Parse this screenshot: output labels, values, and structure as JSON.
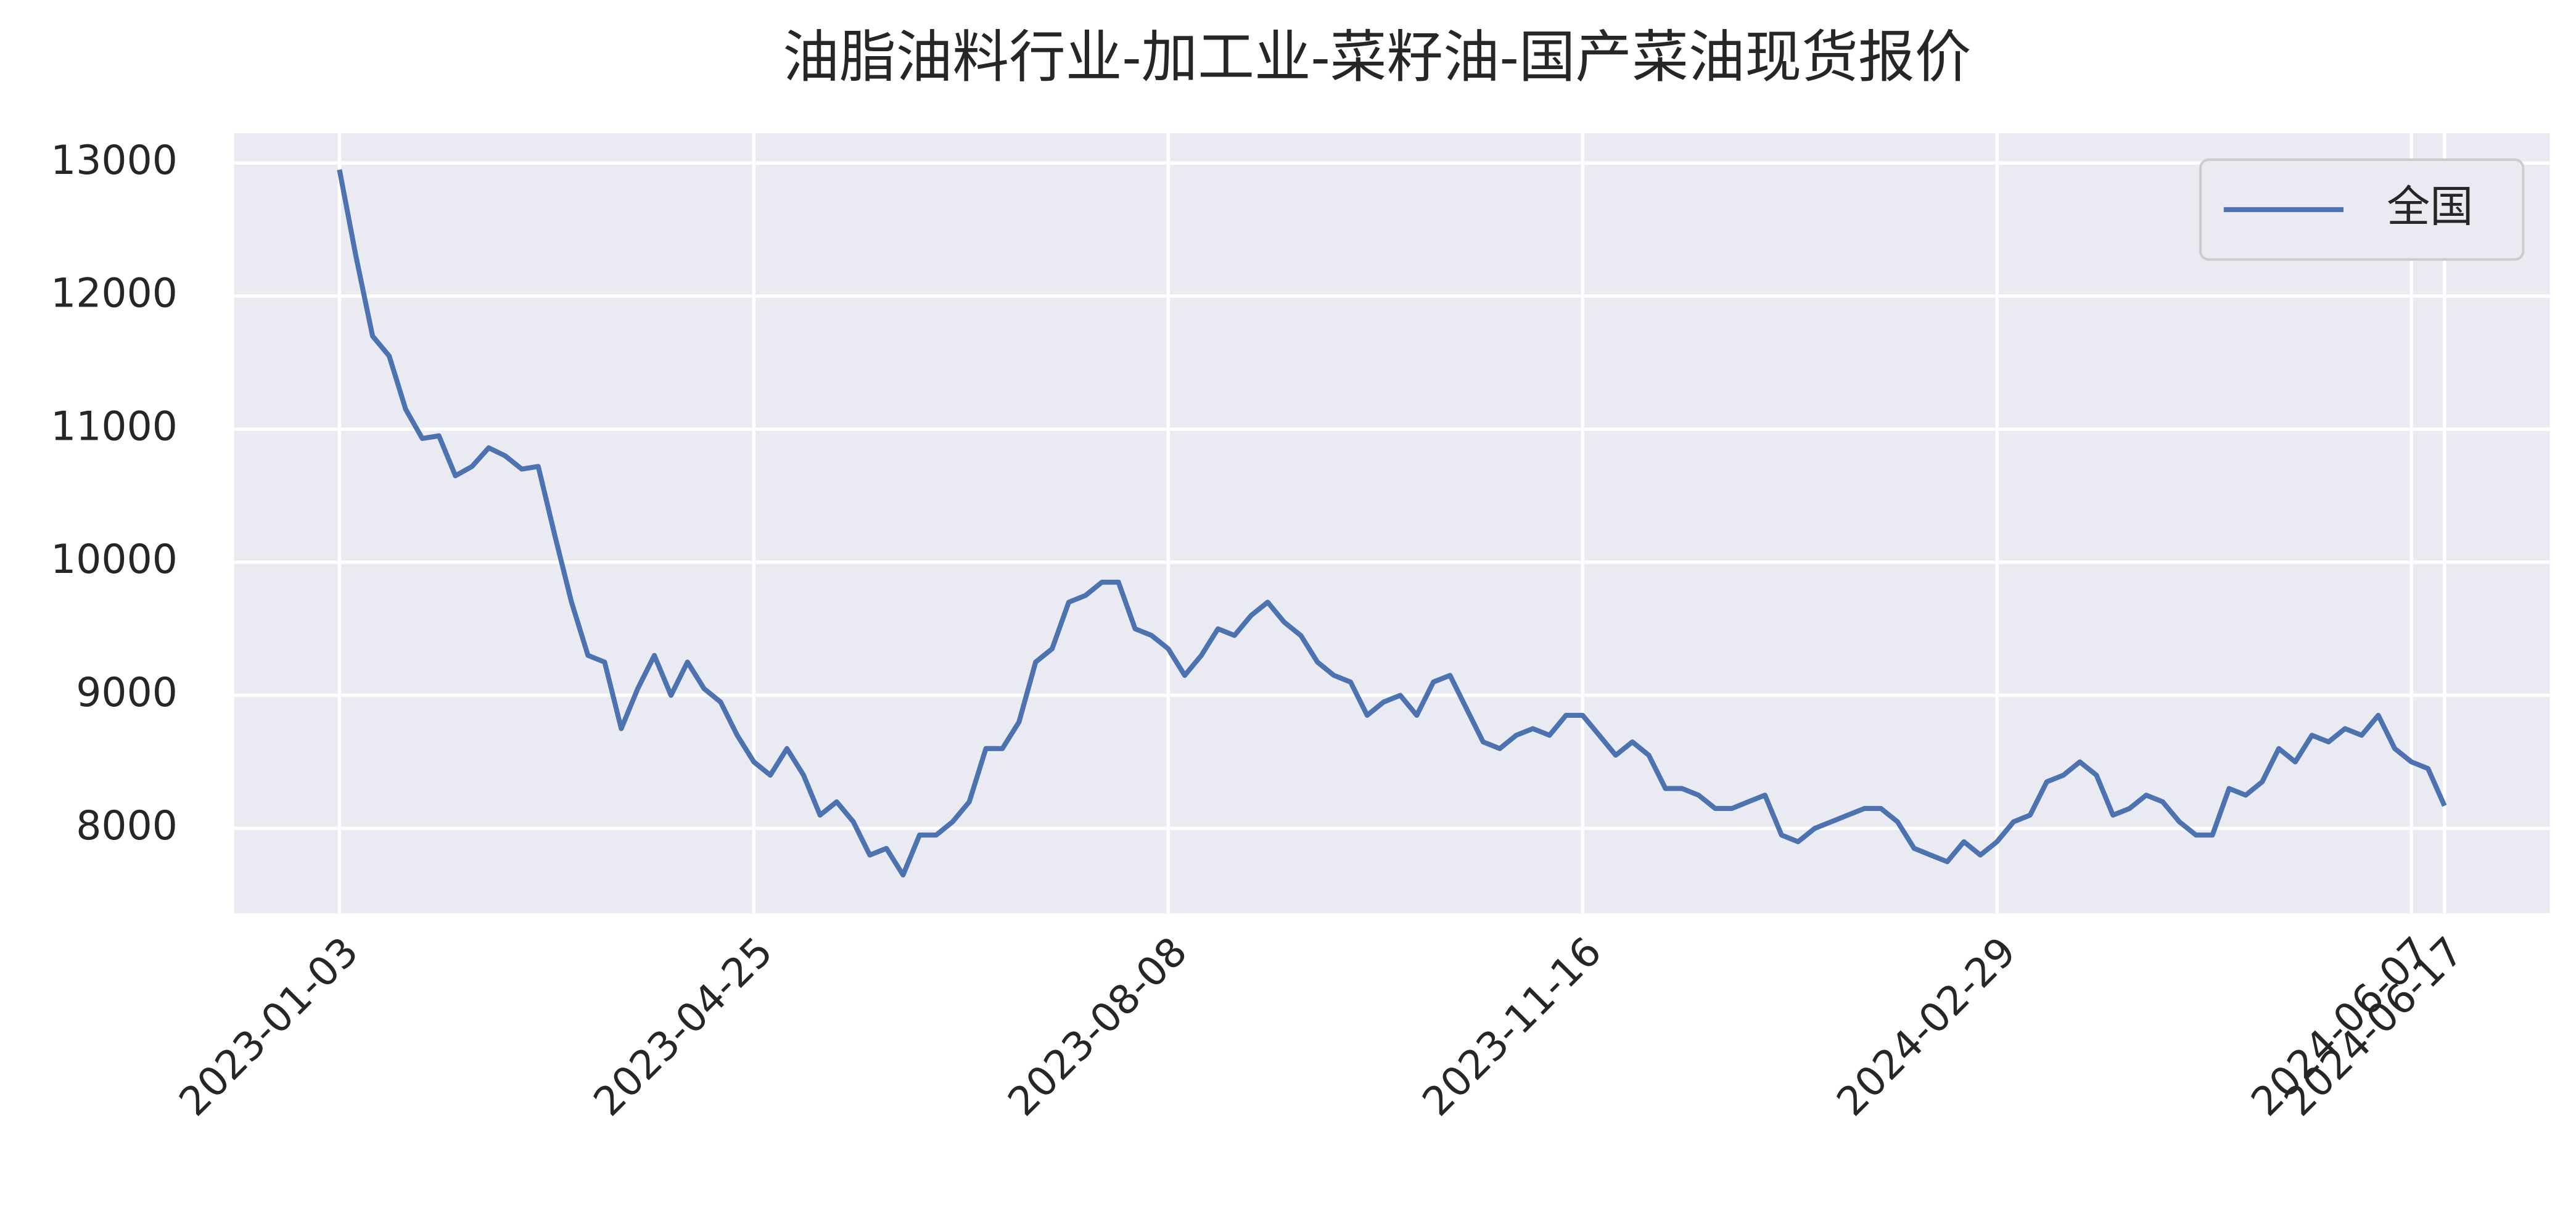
{
  "chart_data": {
    "type": "line",
    "title": "油脂油料行业-加工业-菜籽油-国产菜油现货报价",
    "x": [
      "2023-01-03",
      null,
      null,
      null,
      null,
      null,
      null,
      null,
      null,
      null,
      null,
      null,
      null,
      null,
      null,
      null,
      null,
      null,
      null,
      null,
      null,
      null,
      null,
      null,
      null,
      "2023-04-25",
      null,
      null,
      null,
      null,
      null,
      null,
      null,
      null,
      null,
      null,
      null,
      null,
      null,
      null,
      null,
      null,
      null,
      null,
      null,
      null,
      null,
      null,
      null,
      null,
      "2023-08-08",
      null,
      null,
      null,
      null,
      null,
      null,
      null,
      null,
      null,
      null,
      null,
      null,
      null,
      null,
      null,
      null,
      null,
      null,
      null,
      null,
      null,
      null,
      null,
      null,
      "2023-11-16",
      null,
      null,
      null,
      null,
      null,
      null,
      null,
      null,
      null,
      null,
      null,
      null,
      null,
      null,
      null,
      null,
      null,
      null,
      null,
      null,
      null,
      null,
      null,
      null,
      "2024-02-29",
      null,
      null,
      null,
      null,
      null,
      null,
      null,
      null,
      null,
      null,
      null,
      null,
      null,
      null,
      null,
      null,
      null,
      null,
      null,
      null,
      null,
      null,
      null,
      null,
      "2024-06-07",
      null,
      "2024-06-17"
    ],
    "series": [
      {
        "name": "全国",
        "color": "#4c72b0",
        "values": [
          12950,
          12300,
          11700,
          11550,
          11150,
          10930,
          10950,
          10650,
          10720,
          10860,
          10800,
          10700,
          10720,
          10200,
          9700,
          9300,
          9250,
          8750,
          9050,
          9300,
          9000,
          9250,
          9050,
          8950,
          8700,
          8500,
          8400,
          8600,
          8400,
          8100,
          8200,
          8050,
          7800,
          7850,
          7650,
          7950,
          7950,
          8050,
          8200,
          8600,
          8600,
          8800,
          9250,
          9350,
          9700,
          9750,
          9850,
          9850,
          9500,
          9450,
          9350,
          9150,
          9300,
          9500,
          9450,
          9600,
          9700,
          9550,
          9450,
          9250,
          9150,
          9100,
          8850,
          8950,
          9000,
          8850,
          9100,
          9150,
          8900,
          8650,
          8600,
          8700,
          8750,
          8700,
          8850,
          8850,
          8700,
          8550,
          8650,
          8550,
          8300,
          8300,
          8250,
          8150,
          8150,
          8200,
          8250,
          7950,
          7900,
          8000,
          8050,
          8100,
          8150,
          8150,
          8050,
          7850,
          7800,
          7750,
          7900,
          7800,
          7900,
          8050,
          8100,
          8350,
          8400,
          8500,
          8400,
          8100,
          8150,
          8250,
          8200,
          8050,
          7950,
          7950,
          8300,
          8250,
          8350,
          8600,
          8500,
          8700,
          8650,
          8750,
          8700,
          8850,
          8600,
          8500,
          8450,
          8170
        ]
      }
    ],
    "ylim": [
      7362,
      13225
    ],
    "yticks": [
      8000,
      9000,
      10000,
      11000,
      12000,
      13000
    ],
    "grid": true,
    "legend": "upper right"
  }
}
